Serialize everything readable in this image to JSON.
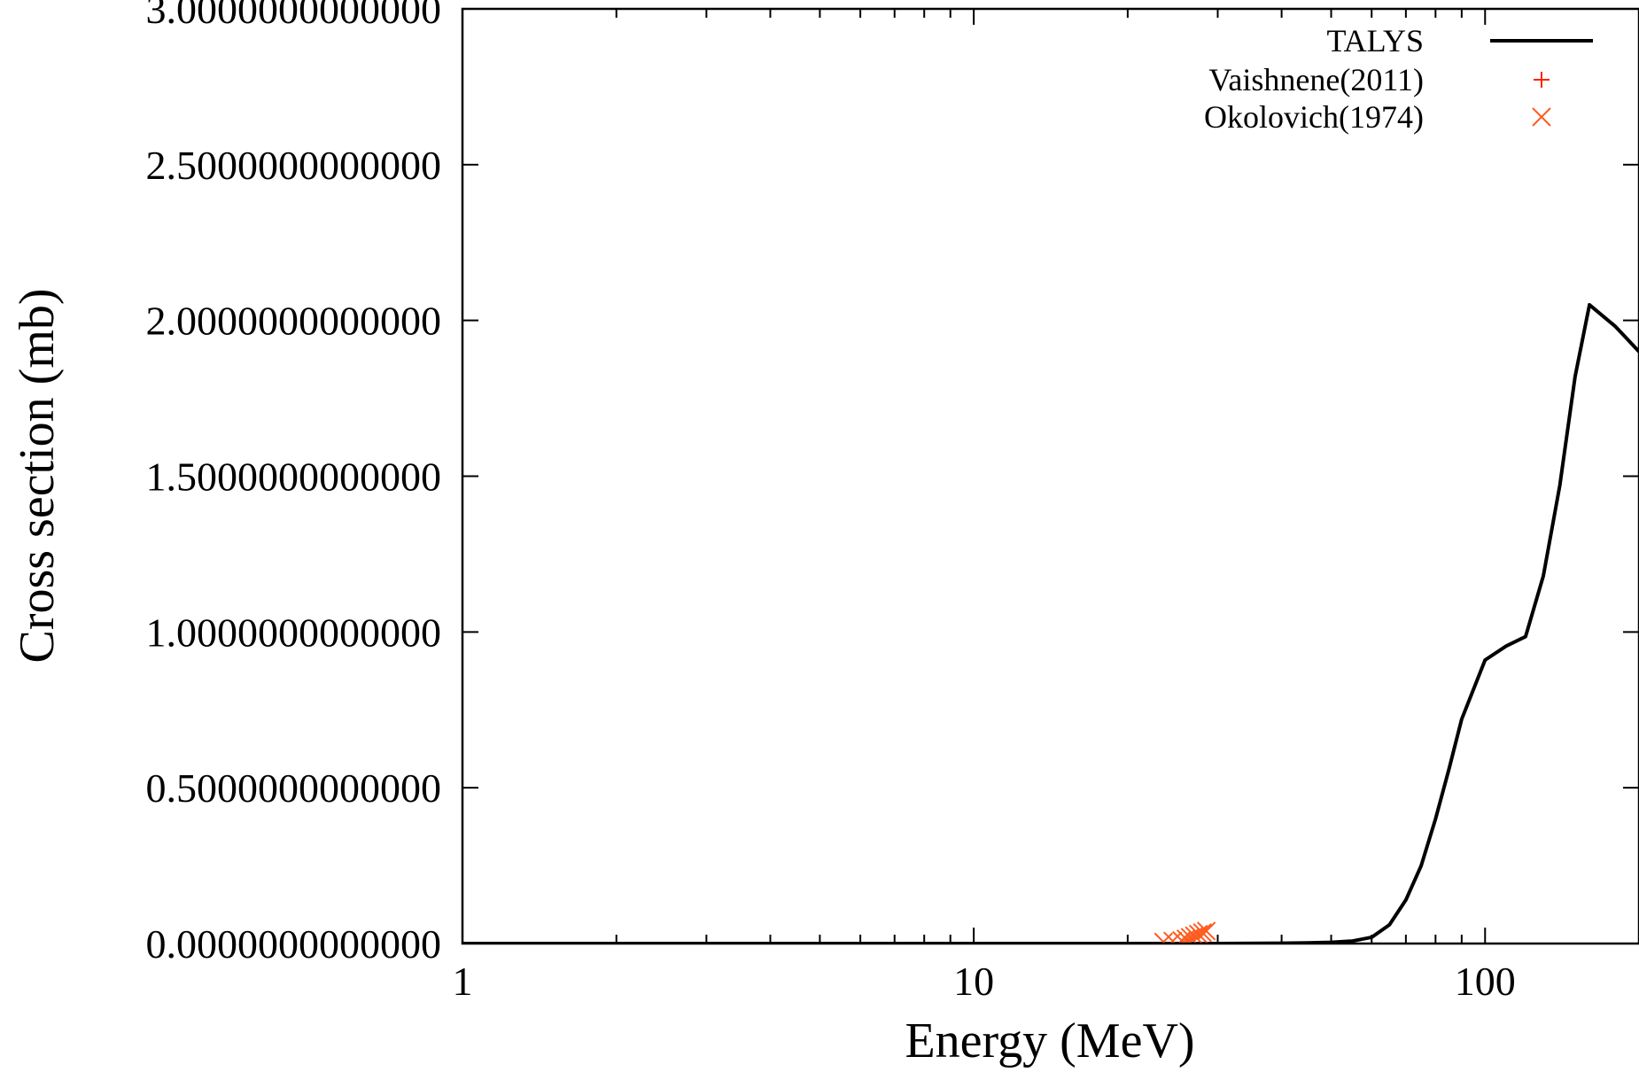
{
  "chart_data": {
    "type": "line",
    "xlabel": "Energy (MeV)",
    "ylabel": "Cross section (mb)",
    "x_scale": "log",
    "xlim": [
      1,
      200
    ],
    "ylim": [
      0,
      3
    ],
    "grid": false,
    "legend_position": "top-right",
    "x_ticks": [
      {
        "value": 1,
        "label": "1"
      },
      {
        "value": 10,
        "label": "10"
      },
      {
        "value": 100,
        "label": "100"
      }
    ],
    "y_ticks": [
      {
        "value": 0,
        "label": "0.0000000000000"
      },
      {
        "value": 0.5,
        "label": "0.5000000000000"
      },
      {
        "value": 1,
        "label": "1.0000000000000"
      },
      {
        "value": 1.5,
        "label": "1.5000000000000"
      },
      {
        "value": 2,
        "label": "2.0000000000000"
      },
      {
        "value": 2.5,
        "label": "2.5000000000000"
      },
      {
        "value": 3,
        "label": "3.0000000000000"
      }
    ],
    "series": [
      {
        "name": "TALYS",
        "style": "line",
        "color": "#000000",
        "x": [
          1,
          10,
          30,
          40,
          45,
          50,
          55,
          60,
          65,
          70,
          75,
          80,
          85,
          90,
          100,
          110,
          120,
          130,
          140,
          150,
          160,
          180,
          200
        ],
        "y": [
          0,
          0,
          0,
          0.001,
          0.002,
          0.004,
          0.008,
          0.02,
          0.06,
          0.14,
          0.25,
          0.4,
          0.56,
          0.72,
          0.91,
          0.955,
          0.985,
          1.18,
          1.47,
          1.82,
          2.05,
          1.98,
          1.9
        ]
      },
      {
        "name": "Vaishnene(2011)",
        "style": "plus",
        "color": "#ff2400",
        "x": [],
        "y": []
      },
      {
        "name": "Okolovich(1974)",
        "style": "cross",
        "color": "#ff5a1f",
        "x": [
          23.5,
          24.5,
          25.5,
          26.0,
          26.5,
          27.0,
          27.5,
          28.0,
          28.5
        ],
        "y": [
          0.005,
          0.008,
          0.01,
          0.015,
          0.02,
          0.025,
          0.03,
          0.035,
          0.04
        ]
      }
    ]
  }
}
